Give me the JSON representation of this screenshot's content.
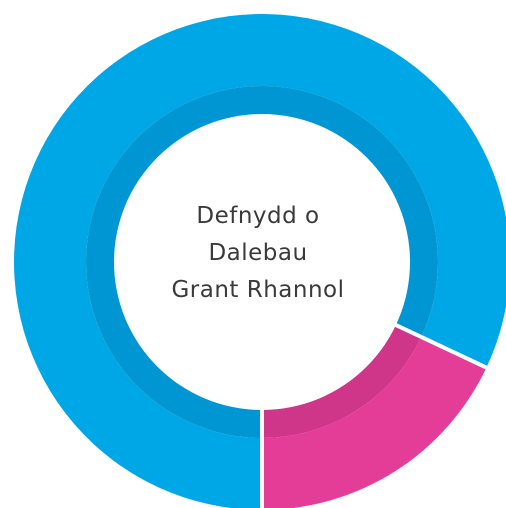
{
  "chart_data": {
    "type": "pie",
    "variant": "donut",
    "title_lines": [
      "Defnydd o",
      "Dalebau",
      "Grant Rhannol"
    ],
    "slices": [
      {
        "value": 82,
        "color": "#00a7e6",
        "shade": "#0096d3"
      },
      {
        "value": 18,
        "color": "#e43d98",
        "shade": "#cf3689"
      }
    ],
    "start": "6 o'clock",
    "direction": "clockwise",
    "legend": "none"
  }
}
